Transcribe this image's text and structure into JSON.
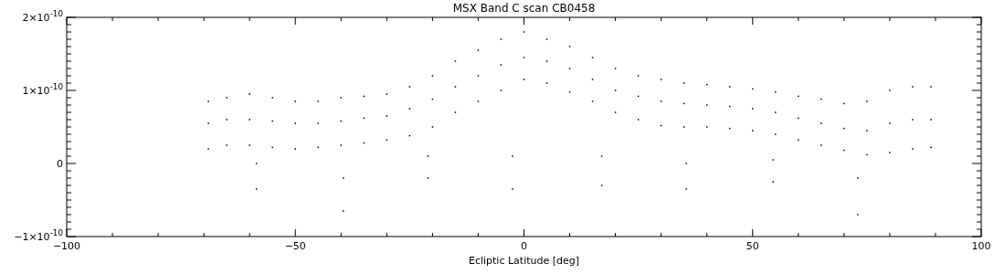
{
  "chart_data": {
    "type": "scatter",
    "title": "MSX Band C scan CB0458",
    "xlabel": "Ecliptic Latitude [deg]",
    "marker": "square",
    "grid": false,
    "xlim": [
      -100,
      100
    ],
    "xticks": [
      -100,
      {
        "value": -90,
        "label": null
      },
      {
        "value": -80,
        "label": null
      },
      {
        "value": -70,
        "label": null
      },
      {
        "value": -60,
        "label": null
      },
      -50,
      {
        "value": -40,
        "label": null
      },
      {
        "value": -30,
        "label": null
      },
      {
        "value": -20,
        "label": null
      },
      {
        "value": -10,
        "label": null
      },
      0,
      {
        "value": 10,
        "label": null
      },
      {
        "value": 20,
        "label": null
      },
      {
        "value": 30,
        "label": null
      },
      {
        "value": 40,
        "label": null
      },
      50,
      {
        "value": 60,
        "label": null
      },
      {
        "value": 70,
        "label": null
      },
      {
        "value": 80,
        "label": null
      },
      {
        "value": 90,
        "label": null
      },
      100
    ],
    "ylim": [
      -1e-10,
      2e-10
    ],
    "yticks": [
      {
        "value": -1e-10,
        "label": "−1×10$^{-10}$"
      },
      {
        "value": -9e-11,
        "label": null
      },
      {
        "value": -8e-11,
        "label": null
      },
      {
        "value": -7e-11,
        "label": null
      },
      {
        "value": -6e-11,
        "label": null
      },
      {
        "value": -5e-11,
        "label": null
      },
      {
        "value": -4e-11,
        "label": null
      },
      {
        "value": -3e-11,
        "label": null
      },
      {
        "value": -2e-11,
        "label": null
      },
      {
        "value": -1e-11,
        "label": null
      },
      {
        "value": 0,
        "label": "0"
      },
      {
        "value": 1e-11,
        "label": null
      },
      {
        "value": 2e-11,
        "label": null
      },
      {
        "value": 3e-11,
        "label": null
      },
      {
        "value": 4e-11,
        "label": null
      },
      {
        "value": 5e-11,
        "label": null
      },
      {
        "value": 6e-11,
        "label": null
      },
      {
        "value": 7e-11,
        "label": null
      },
      {
        "value": 8e-11,
        "label": null
      },
      {
        "value": 9e-11,
        "label": null
      },
      {
        "value": 1e-10,
        "label": "1×10$^{-10}$"
      },
      {
        "value": 1.1e-10,
        "label": null
      },
      {
        "value": 1.2e-10,
        "label": null
      },
      {
        "value": 1.3e-10,
        "label": null
      },
      {
        "value": 1.4e-10,
        "label": null
      },
      {
        "value": 1.5e-10,
        "label": null
      },
      {
        "value": 1.6e-10,
        "label": null
      },
      {
        "value": 1.7e-10,
        "label": null
      },
      {
        "value": 1.8e-10,
        "label": null
      },
      {
        "value": 1.9e-10,
        "label": null
      },
      {
        "value": 2e-10,
        "label": "2×10$^{-10}$"
      }
    ],
    "series": [
      {
        "color": "#000000",
        "x": [
          -69,
          -69,
          -69,
          -65,
          -65,
          -65,
          -60,
          -60,
          -60,
          -58.5,
          -58.5,
          -55,
          -55,
          -55,
          -50,
          -50,
          -50,
          -45,
          -45,
          -45,
          -40,
          -40,
          -40,
          -39.5,
          -39.5,
          -35,
          -35,
          -35,
          -30,
          -30,
          -30,
          -25,
          -25,
          -25,
          -21,
          -21,
          -20,
          -20,
          -20,
          -15,
          -15,
          -15,
          -10,
          -10,
          -10,
          -5,
          -5,
          -5,
          -2.5,
          -2.5,
          0,
          0,
          0,
          5,
          5,
          5,
          10,
          10,
          10,
          15,
          15,
          15,
          17,
          17,
          20,
          20,
          20,
          25,
          25,
          25,
          30,
          30,
          30,
          35,
          35,
          35,
          35.5,
          35.5,
          40,
          40,
          40,
          45,
          45,
          45,
          50,
          50,
          50,
          54.5,
          54.5,
          55,
          55,
          55,
          60,
          60,
          60,
          65,
          65,
          65,
          70,
          70,
          70,
          73,
          73,
          75,
          75,
          75,
          80,
          80,
          80,
          85,
          85,
          85,
          89,
          89,
          89
        ],
        "values": [
          8.5e-11,
          5.5e-11,
          2e-11,
          9e-11,
          6e-11,
          2.5e-11,
          9.5e-11,
          6e-11,
          2.5e-11,
          -3.5e-11,
          0,
          9e-11,
          5.8e-11,
          2.2e-11,
          8.5e-11,
          5.5e-11,
          2e-11,
          8.5e-11,
          5.5e-11,
          2.2e-11,
          9e-11,
          5.8e-11,
          2.5e-11,
          -6.5e-11,
          -2e-11,
          9.2e-11,
          6.2e-11,
          2.8e-11,
          9.5e-11,
          6.5e-11,
          3.2e-11,
          1.05e-10,
          7.5e-11,
          3.8e-11,
          -2e-11,
          1e-11,
          1.2e-10,
          8.8e-11,
          5e-11,
          1.4e-10,
          1.05e-10,
          7e-11,
          1.55e-10,
          1.2e-10,
          8.5e-11,
          1.7e-10,
          1.35e-10,
          1e-10,
          -3.5e-11,
          1e-11,
          1.8e-10,
          1.45e-10,
          1.15e-10,
          1.7e-10,
          1.4e-10,
          1.1e-10,
          1.6e-10,
          1.3e-10,
          9.8e-11,
          1.45e-10,
          1.15e-10,
          8.5e-11,
          -3e-11,
          1e-11,
          1.3e-10,
          1e-10,
          7e-11,
          1.2e-10,
          9.2e-11,
          6e-11,
          1.15e-10,
          8.5e-11,
          5.2e-11,
          1.1e-10,
          8.2e-11,
          5e-11,
          -3.5e-11,
          0,
          1.08e-10,
          8e-11,
          5e-11,
          1.05e-10,
          7.8e-11,
          4.8e-11,
          1.02e-10,
          7.5e-11,
          4.5e-11,
          -2.5e-11,
          5e-12,
          9.8e-11,
          7e-11,
          4e-11,
          9.2e-11,
          6.2e-11,
          3.2e-11,
          8.8e-11,
          5.5e-11,
          2.5e-11,
          8.2e-11,
          4.8e-11,
          1.8e-11,
          -7e-11,
          -2e-11,
          8.5e-11,
          4.5e-11,
          1.2e-11,
          1e-10,
          5.5e-11,
          1.5e-11,
          1.05e-10,
          6e-11,
          2e-11,
          1.05e-10,
          6e-11,
          2.2e-11
        ]
      }
    ]
  }
}
